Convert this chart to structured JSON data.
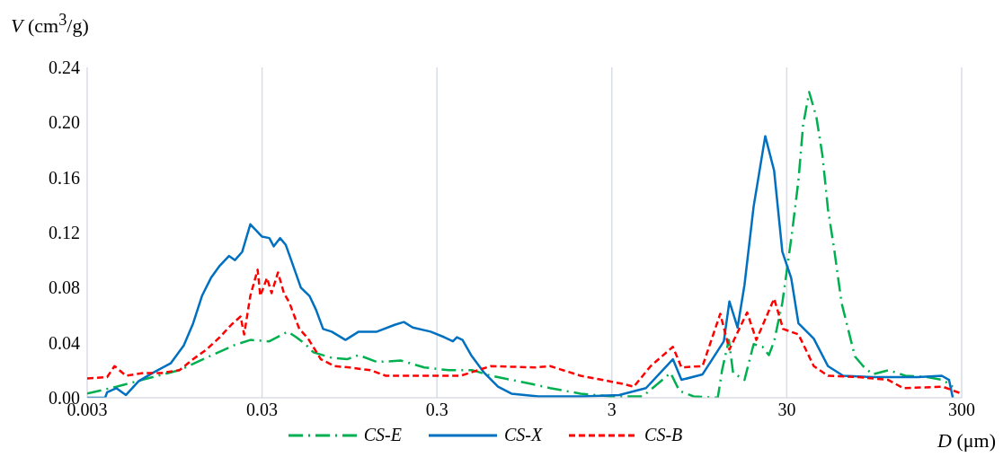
{
  "chart_data": {
    "type": "line",
    "xlabel": "D (μm)",
    "ylabel": "V (cm$^{3}$/g)",
    "log": "x",
    "grid": true,
    "legend": "bottom",
    "marker": "none",
    "xlim": [
      0.003,
      300
    ],
    "xticks": [
      0.003,
      0.03,
      0.3,
      3,
      30,
      300
    ],
    "ylim": [
      0,
      0.24
    ],
    "yticks": [
      {
        "value": 0,
        "label": "0.00"
      },
      {
        "value": 0.04,
        "label": "0.04"
      },
      {
        "value": 0.08,
        "label": "0.08"
      },
      {
        "value": 0.12,
        "label": "0.12"
      },
      {
        "value": 0.16,
        "label": "0.16"
      },
      {
        "value": 0.2,
        "label": "0.20"
      },
      {
        "value": 0.24,
        "label": "0.24"
      }
    ],
    "series": [
      {
        "name": "CS-E",
        "color": "#00b050",
        "line_style": "dashdot",
        "x": [
          0.003,
          0.0044,
          0.0071,
          0.0101,
          0.0144,
          0.0206,
          0.0257,
          0.033,
          0.042,
          0.047,
          0.053,
          0.059,
          0.075,
          0.092,
          0.107,
          0.136,
          0.187,
          0.254,
          0.35,
          0.48,
          0.61,
          1.05,
          1.33,
          1.99,
          2.94,
          4.5,
          6.5,
          7.3,
          8.8,
          12.1,
          12.8,
          14,
          14.8,
          17.2,
          19.4,
          21.8,
          23.7,
          25.4,
          28.3,
          32.1,
          35,
          37.2,
          40.3,
          44.3,
          48,
          51.6,
          56,
          61.7,
          73.6,
          82,
          93,
          115,
          143,
          191,
          234,
          267
        ],
        "values": [
          0.003,
          0.008,
          0.015,
          0.02,
          0.029,
          0.038,
          0.042,
          0.041,
          0.048,
          0.044,
          0.039,
          0.033,
          0.029,
          0.028,
          0.031,
          0.026,
          0.027,
          0.022,
          0.02,
          0.02,
          0.016,
          0.01,
          0.007,
          0.003,
          0.001,
          0.001,
          0.018,
          0.005,
          0.001,
          0,
          0.02,
          0.042,
          0.018,
          0.013,
          0.039,
          0.037,
          0.031,
          0.041,
          0.069,
          0.119,
          0.158,
          0.198,
          0.222,
          0.204,
          0.176,
          0.137,
          0.108,
          0.069,
          0.03,
          0.023,
          0.017,
          0.02,
          0.016,
          0.015,
          0.013,
          0.008
        ]
      },
      {
        "name": "CS-X",
        "color": "#0070c0",
        "line_style": "solid",
        "x": [
          0.003,
          0.0038,
          0.0039,
          0.0044,
          0.005,
          0.0059,
          0.0071,
          0.009,
          0.0107,
          0.0121,
          0.0136,
          0.0153,
          0.0172,
          0.0194,
          0.021,
          0.0231,
          0.0257,
          0.03,
          0.033,
          0.035,
          0.038,
          0.041,
          0.044,
          0.05,
          0.056,
          0.061,
          0.067,
          0.075,
          0.09,
          0.107,
          0.136,
          0.172,
          0.194,
          0.218,
          0.276,
          0.33,
          0.37,
          0.39,
          0.42,
          0.47,
          0.56,
          0.67,
          0.8,
          1.14,
          2.06,
          3.3,
          4.7,
          6.7,
          7.5,
          9.9,
          13.1,
          14.1,
          15.7,
          17.2,
          19.4,
          22.6,
          25.4,
          28.3,
          31.8,
          35,
          42.8,
          51.6,
          63,
          93,
          168,
          231,
          254,
          267
        ],
        "values": [
          0,
          0,
          0.004,
          0.007,
          0.002,
          0.012,
          0.018,
          0.025,
          0.038,
          0.054,
          0.074,
          0.087,
          0.096,
          0.103,
          0.1,
          0.106,
          0.126,
          0.117,
          0.116,
          0.11,
          0.116,
          0.111,
          0.1,
          0.08,
          0.074,
          0.064,
          0.05,
          0.048,
          0.042,
          0.048,
          0.048,
          0.053,
          0.055,
          0.051,
          0.048,
          0.044,
          0.041,
          0.044,
          0.042,
          0.031,
          0.018,
          0.008,
          0.003,
          0.001,
          0.001,
          0.002,
          0.007,
          0.028,
          0.013,
          0.017,
          0.041,
          0.07,
          0.051,
          0.082,
          0.139,
          0.19,
          0.165,
          0.106,
          0.087,
          0.054,
          0.043,
          0.023,
          0.016,
          0.015,
          0.015,
          0.016,
          0.013,
          0
        ]
      },
      {
        "name": "CS-B",
        "color": "#ff0000",
        "line_style": "dashed",
        "x": [
          0.003,
          0.0039,
          0.0043,
          0.005,
          0.0063,
          0.008,
          0.0101,
          0.0121,
          0.0144,
          0.0172,
          0.02,
          0.0226,
          0.0237,
          0.0257,
          0.0283,
          0.0293,
          0.032,
          0.034,
          0.037,
          0.04,
          0.043,
          0.046,
          0.049,
          0.055,
          0.065,
          0.078,
          0.095,
          0.125,
          0.153,
          0.276,
          0.41,
          0.61,
          1.1,
          1.33,
          1.99,
          3.5,
          4,
          5,
          6.7,
          7.5,
          9.9,
          12.5,
          14.1,
          17.8,
          20.1,
          25.4,
          28.6,
          35,
          42.8,
          51.6,
          77,
          114,
          139,
          234,
          300
        ],
        "values": [
          0.014,
          0.015,
          0.023,
          0.016,
          0.018,
          0.018,
          0.02,
          0.028,
          0.035,
          0.044,
          0.053,
          0.059,
          0.046,
          0.074,
          0.093,
          0.074,
          0.087,
          0.076,
          0.091,
          0.076,
          0.069,
          0.059,
          0.05,
          0.043,
          0.028,
          0.023,
          0.022,
          0.02,
          0.016,
          0.016,
          0.016,
          0.023,
          0.022,
          0.023,
          0.016,
          0.01,
          0.008,
          0.023,
          0.037,
          0.022,
          0.023,
          0.061,
          0.035,
          0.062,
          0.042,
          0.072,
          0.05,
          0.046,
          0.023,
          0.016,
          0.015,
          0.013,
          0.007,
          0.008,
          0.003
        ]
      }
    ]
  }
}
